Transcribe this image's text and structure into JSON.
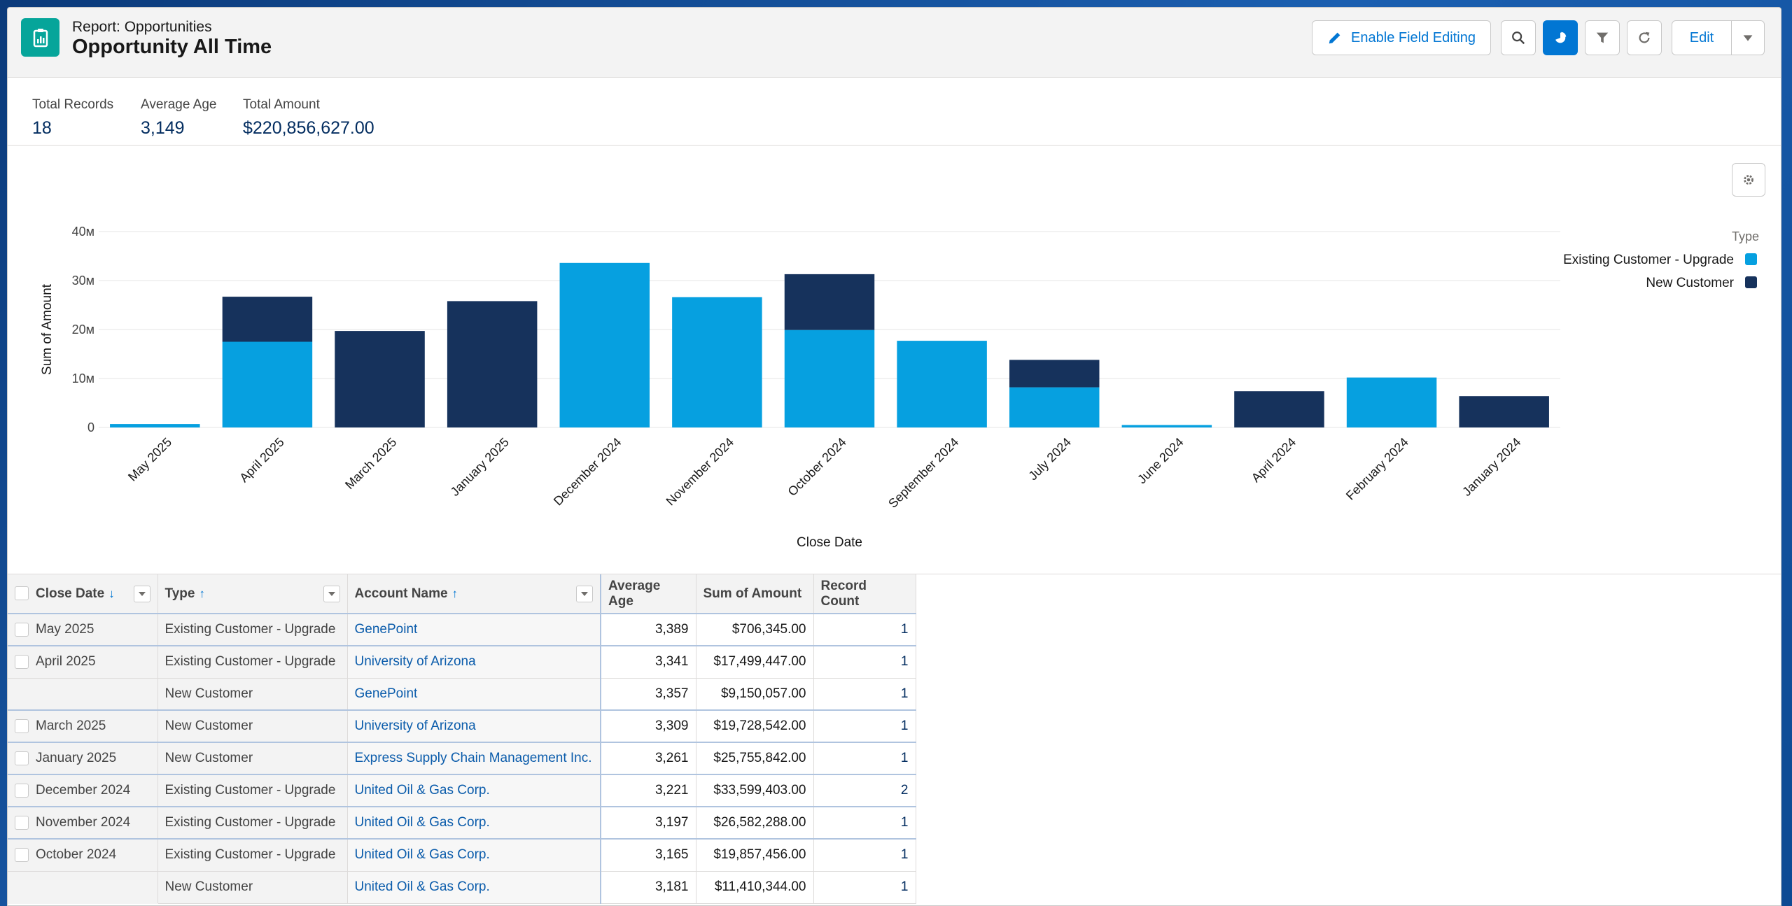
{
  "header": {
    "subtitle": "Report: Opportunities",
    "title": "Opportunity All Time",
    "buttons": {
      "enable_field_editing": "Enable Field Editing",
      "edit": "Edit"
    }
  },
  "summary": [
    {
      "label": "Total Records",
      "value": "18"
    },
    {
      "label": "Average Age",
      "value": "3,149"
    },
    {
      "label": "Total Amount",
      "value": "$220,856,627.00"
    }
  ],
  "chart_data": {
    "type": "bar",
    "stacked": true,
    "categories": [
      "May 2025",
      "April 2025",
      "March 2025",
      "January 2025",
      "December 2024",
      "November 2024",
      "October 2024",
      "September 2024",
      "July 2024",
      "June 2024",
      "April 2024",
      "February 2024",
      "January 2024"
    ],
    "series": [
      {
        "name": "Existing Customer - Upgrade",
        "color": "#06a0e0",
        "values": [
          0.7,
          17.5,
          0,
          0,
          33.6,
          26.6,
          19.9,
          17.7,
          8.2,
          0.5,
          0,
          10.2,
          0
        ]
      },
      {
        "name": "New Customer",
        "color": "#16325c",
        "values": [
          0,
          9.2,
          19.7,
          25.8,
          0,
          0,
          11.4,
          0,
          5.6,
          0,
          7.4,
          0,
          6.4
        ]
      }
    ],
    "xlabel": "Close Date",
    "ylabel": "Sum of Amount",
    "yticks": [
      "0",
      "10м",
      "20м",
      "30м",
      "40м"
    ],
    "ylim": [
      0,
      40
    ],
    "legend_title": "Type",
    "legend_position": "top-right",
    "grid": true
  },
  "table": {
    "headers": {
      "close_date": "Close Date",
      "type": "Type",
      "account_name": "Account Name",
      "average_age": "Average Age",
      "sum_of_amount": "Sum of Amount",
      "record_count": "Record Count"
    },
    "rows": [
      {
        "date": "May 2025",
        "type": "Existing Customer - Upgrade",
        "account": "GenePoint",
        "age": "3,389",
        "amount": "$706,345.00",
        "count": "1"
      },
      {
        "date": "April 2025",
        "type": "Existing Customer - Upgrade",
        "account": "University of Arizona",
        "age": "3,341",
        "amount": "$17,499,447.00",
        "count": "1"
      },
      {
        "date": "",
        "type": "New Customer",
        "account": "GenePoint",
        "age": "3,357",
        "amount": "$9,150,057.00",
        "count": "1"
      },
      {
        "date": "March 2025",
        "type": "New Customer",
        "account": "University of Arizona",
        "age": "3,309",
        "amount": "$19,728,542.00",
        "count": "1"
      },
      {
        "date": "January 2025",
        "type": "New Customer",
        "account": "Express Supply Chain Management Inc.",
        "age": "3,261",
        "amount": "$25,755,842.00",
        "count": "1"
      },
      {
        "date": "December 2024",
        "type": "Existing Customer - Upgrade",
        "account": "United Oil & Gas Corp.",
        "age": "3,221",
        "amount": "$33,599,403.00",
        "count": "2"
      },
      {
        "date": "November 2024",
        "type": "Existing Customer - Upgrade",
        "account": "United Oil & Gas Corp.",
        "age": "3,197",
        "amount": "$26,582,288.00",
        "count": "1"
      },
      {
        "date": "October 2024",
        "type": "Existing Customer - Upgrade",
        "account": "United Oil & Gas Corp.",
        "age": "3,165",
        "amount": "$19,857,456.00",
        "count": "1"
      },
      {
        "date": "",
        "type": "New Customer",
        "account": "United Oil & Gas Corp.",
        "age": "3,181",
        "amount": "$11,410,344.00",
        "count": "1"
      }
    ]
  }
}
